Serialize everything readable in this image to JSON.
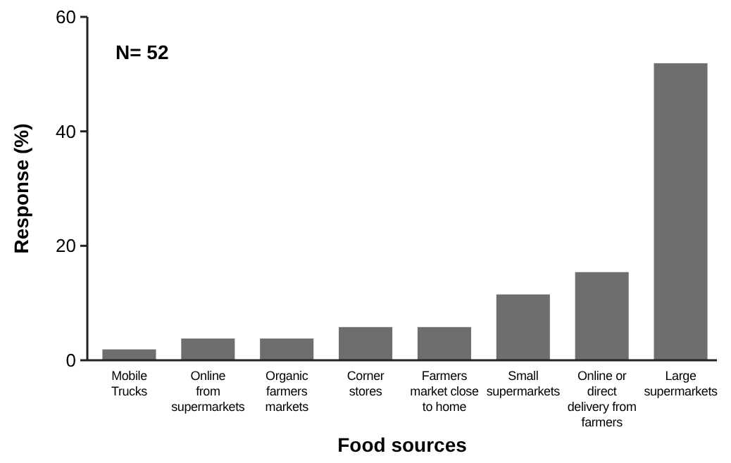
{
  "chart_data": {
    "type": "bar",
    "xlabel": "Food sources",
    "ylabel": "Response (%)",
    "categories": [
      "Mobile\nTrucks",
      "Online\nfrom\nsupermarkets",
      "Organic\nfarmers\nmarkets",
      "Corner\nstores",
      "Farmers\nmarket close\nto home",
      "Small\nsupermarkets",
      "Online or\ndirect\ndelivery from\nfarmers",
      "Large\nsupermarkets"
    ],
    "values": [
      1.9,
      3.8,
      3.8,
      5.8,
      5.8,
      11.5,
      15.4,
      51.9
    ],
    "color": "#6e6e6e",
    "ylim": [
      0,
      60
    ],
    "yticks": [
      0,
      20,
      40,
      60
    ],
    "grid": false,
    "annotations": [
      "N= 52"
    ]
  }
}
